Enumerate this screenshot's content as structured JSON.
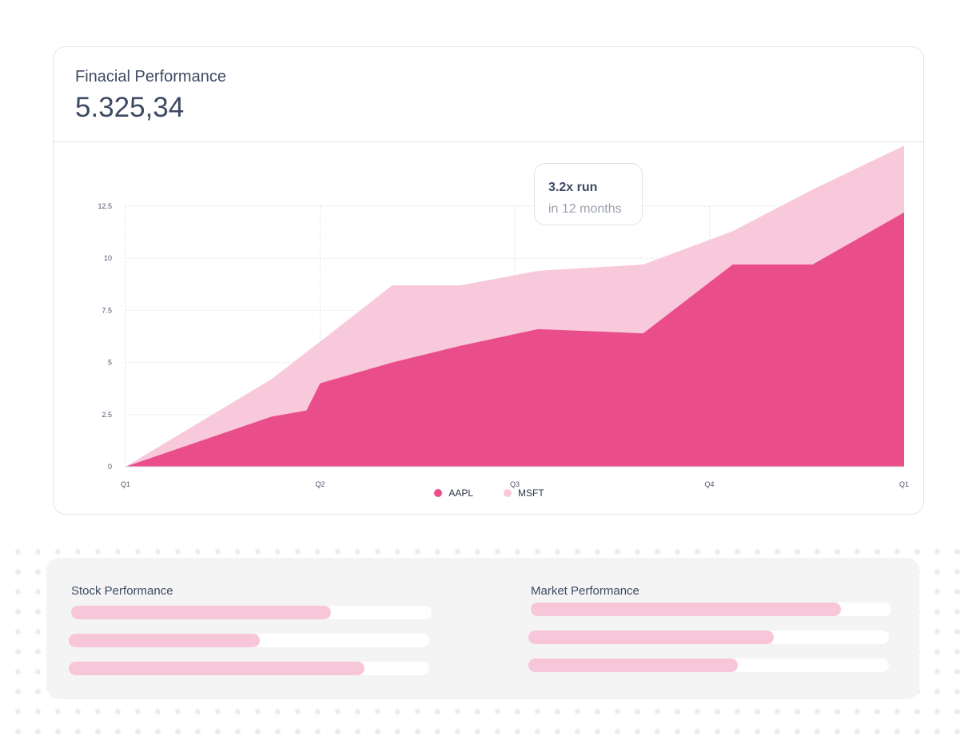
{
  "card": {
    "title": "Finacial Performance",
    "value": "5.325,34"
  },
  "tooltip": {
    "title": "3.2x run",
    "subtitle": "in 12 months"
  },
  "chart_data": {
    "type": "area",
    "stacked": true,
    "x": [
      0,
      0.75,
      0.93,
      1,
      1.37,
      1.72,
      2.12,
      2.66,
      3.12,
      3.53,
      4.0
    ],
    "x_ticks": [
      {
        "value": 0,
        "label": "Q1"
      },
      {
        "value": 1,
        "label": "Q2"
      },
      {
        "value": 2,
        "label": "Q3"
      },
      {
        "value": 3,
        "label": "Q4"
      },
      {
        "value": 4,
        "label": "Q1"
      }
    ],
    "y_ticks": [
      {
        "value": 0,
        "label": "0"
      },
      {
        "value": 2.5,
        "label": "2.5"
      },
      {
        "value": 5,
        "label": "5"
      },
      {
        "value": 7.5,
        "label": "7.5"
      },
      {
        "value": 10,
        "label": "10"
      },
      {
        "value": 12.5,
        "label": "12.5"
      }
    ],
    "ylim": [
      0,
      15.5
    ],
    "xlim": [
      0,
      4
    ],
    "series": [
      {
        "name": "AAPL",
        "color": "#e94d8a",
        "values": [
          0,
          2.4,
          2.7,
          4.0,
          5.0,
          5.8,
          6.6,
          6.4,
          9.7,
          9.7,
          12.2
        ]
      },
      {
        "name": "MSFT",
        "color": "#f8c9db",
        "values": [
          0,
          1.8,
          2.8,
          2.0,
          3.7,
          2.9,
          2.8,
          3.3,
          1.6,
          3.6,
          3.2
        ]
      }
    ],
    "title": "",
    "xlabel": "",
    "ylabel": "",
    "grid": true,
    "legend": "bottom-center"
  },
  "panels": [
    {
      "title": "Stock Performance",
      "bars": [
        0.72,
        0.53,
        0.82
      ]
    },
    {
      "title": "Market Performance",
      "bars": [
        0.86,
        0.68,
        0.58
      ]
    }
  ],
  "colors": {
    "bar_fill": "#f7c7d9",
    "bar_track": "#ffffff",
    "panel_bg": "#f4f4f5",
    "text": "#3d4a63"
  }
}
